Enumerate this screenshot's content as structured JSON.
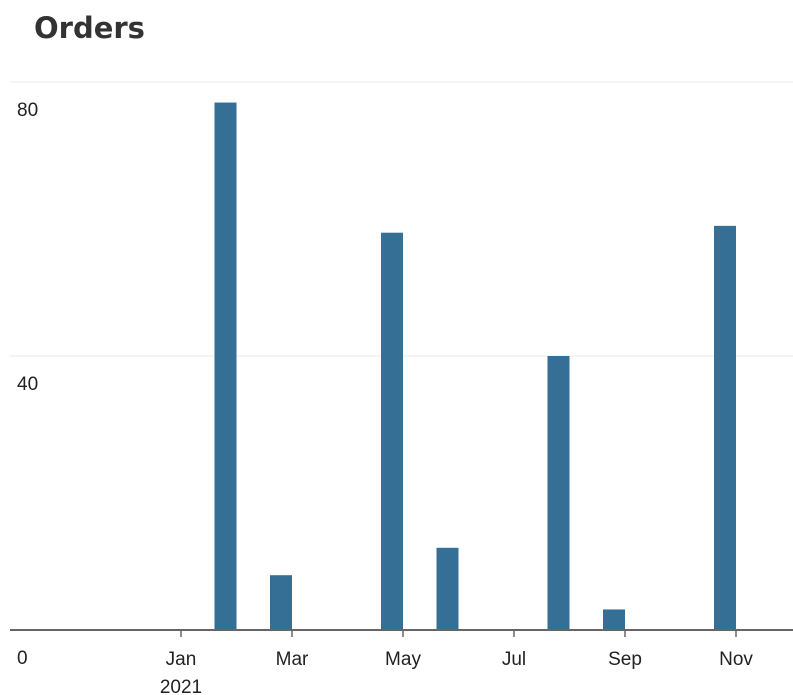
{
  "chart_data": {
    "type": "bar",
    "title": "Orders",
    "x": [
      "2021-02",
      "2021-03",
      "2021-05",
      "2021-06",
      "2021-08",
      "2021-09",
      "2021-11"
    ],
    "values": [
      77,
      8,
      58,
      12,
      40,
      3,
      59
    ],
    "color": "#356f95",
    "ylim": [
      0,
      80
    ],
    "yticks": [
      0,
      40,
      80
    ],
    "grid": true,
    "xticks": [
      {
        "value": "2021-01",
        "label": "Jan"
      },
      {
        "value": "2021-03",
        "label": "Mar"
      },
      {
        "value": "2021-05",
        "label": "May"
      },
      {
        "value": "2021-07",
        "label": "Jul"
      },
      {
        "value": "2021-09",
        "label": "Sep"
      },
      {
        "value": "2021-11",
        "label": "Nov"
      }
    ],
    "xtick_year": "2021"
  }
}
